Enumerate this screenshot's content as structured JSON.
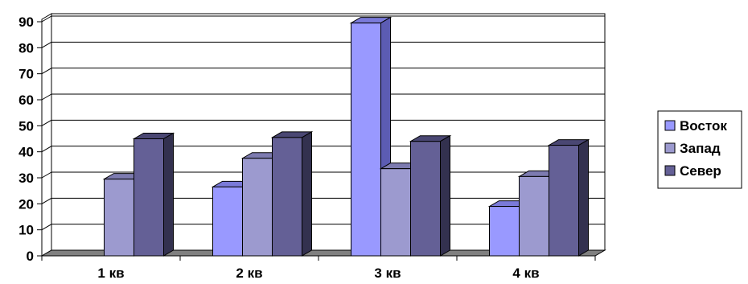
{
  "chart_data": {
    "type": "bar",
    "style": "3d-clustered-column",
    "categories": [
      "1 кв",
      "2 кв",
      "3 кв",
      "4 кв"
    ],
    "series": [
      {
        "name": "Восток",
        "values": [
          0,
          26.5,
          89.5,
          19
        ],
        "color": "#9999FF",
        "side_color": "#5C5CB3",
        "top_color": "#7A7AD9"
      },
      {
        "name": "Запад",
        "values": [
          29.5,
          37.5,
          33.5,
          30.5
        ],
        "color": "#9C9ACF",
        "side_color": "#5E5C8C",
        "top_color": "#7D7BB0"
      },
      {
        "name": "Север",
        "values": [
          45,
          45.5,
          44,
          42.5
        ],
        "color": "#646096",
        "side_color": "#33314F",
        "top_color": "#4A4773"
      }
    ],
    "yticks": [
      "0",
      "10",
      "20",
      "30",
      "40",
      "50",
      "60",
      "70",
      "80",
      "90"
    ],
    "ylim": [
      0,
      90
    ],
    "grid": true,
    "legend": "right",
    "floor_color": "#808080"
  }
}
